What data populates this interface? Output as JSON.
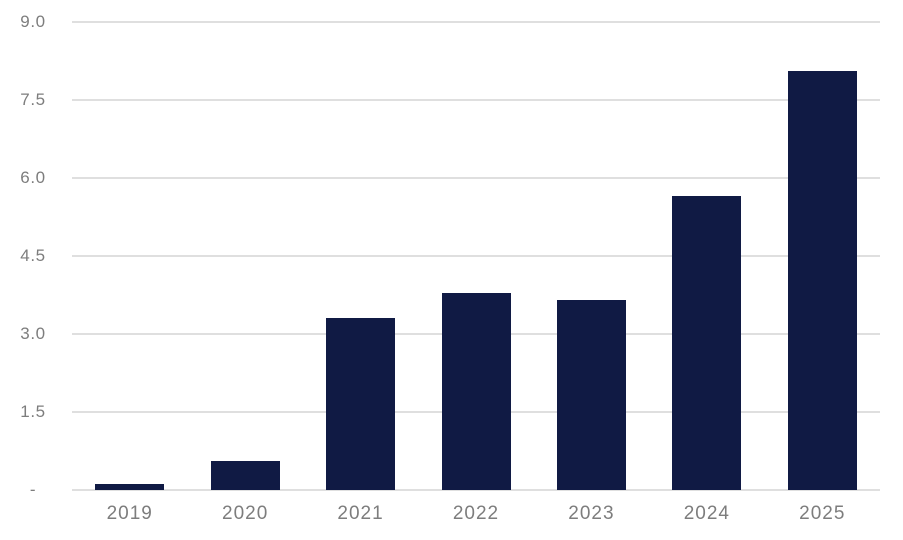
{
  "chart_data": {
    "type": "bar",
    "title": "",
    "categories": [
      "2019",
      "2020",
      "2021",
      "2022",
      "2023",
      "2024",
      "2025"
    ],
    "values": [
      0.12,
      0.55,
      3.3,
      3.78,
      3.65,
      5.65,
      8.05
    ],
    "xlabel": "",
    "ylabel": "",
    "ylim": [
      0,
      9
    ],
    "y_ticks": [
      {
        "value": 9,
        "label": "9.0"
      },
      {
        "value": 7.5,
        "label": "7.5"
      },
      {
        "value": 6,
        "label": "6.0"
      },
      {
        "value": 4.5,
        "label": "4.5"
      },
      {
        "value": 3,
        "label": "3.0"
      },
      {
        "value": 1.5,
        "label": "1.5"
      },
      {
        "value": 0,
        "label": "-"
      }
    ],
    "grid": "horizontal",
    "legend": "none",
    "colors": {
      "bar": "#101a44",
      "gridline": "#dfdfdf",
      "axis_text": "#7d7d7d",
      "background": "#ffffff"
    }
  }
}
